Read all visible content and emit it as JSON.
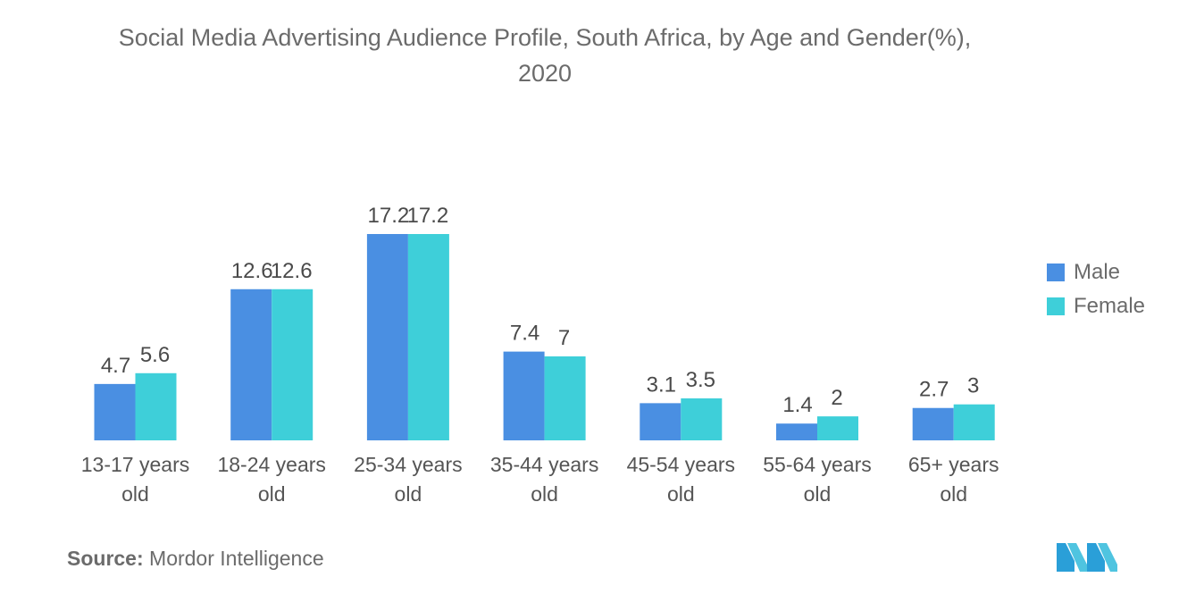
{
  "chart_data": {
    "type": "bar",
    "title": "Social Media Advertising Audience Profile, South Africa, by Age and Gender(%), 2020",
    "categories": [
      "13-17 years old",
      "18-24 years old",
      "25-34 years old",
      "35-44 years old",
      "45-54 years old",
      "55-64 years old",
      "65+ years old"
    ],
    "series": [
      {
        "name": "Male",
        "values": [
          4.7,
          12.6,
          17.2,
          7.4,
          3.1,
          1.4,
          2.7
        ],
        "color": "#4a8fe2"
      },
      {
        "name": "Female",
        "values": [
          5.6,
          12.6,
          17.2,
          7,
          3.5,
          2,
          3
        ],
        "color": "#3ecfd9"
      }
    ],
    "ylim": [
      0,
      17.2
    ],
    "grid": false,
    "legend_position": "right"
  },
  "source": {
    "label": "Source:",
    "text": "Mordor Intelligence"
  },
  "colors": {
    "text": "#6b6b6b",
    "male": "#4a8fe2",
    "female": "#3ecfd9"
  }
}
